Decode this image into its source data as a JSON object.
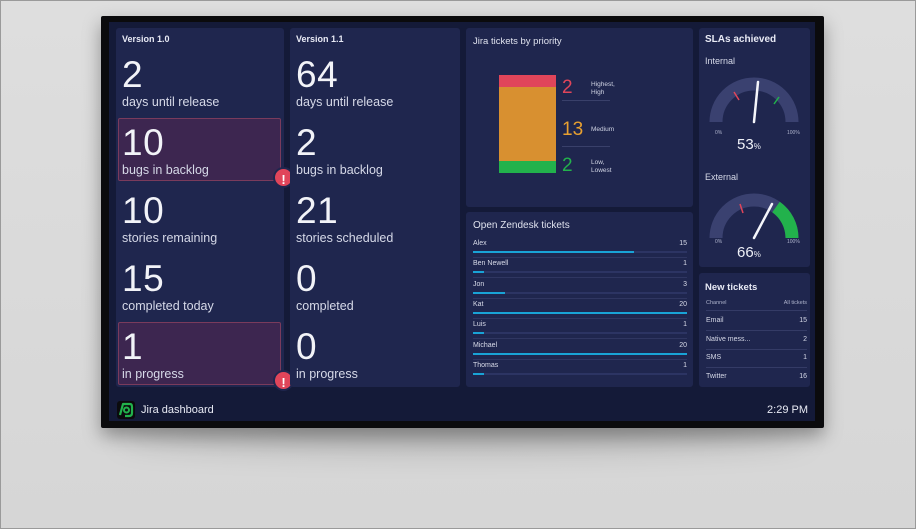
{
  "footer": {
    "title": "Jira dashboard",
    "time": "2:29 PM"
  },
  "version1": {
    "title": "Version 1.0",
    "metrics": [
      {
        "value": "2",
        "label": "days until release",
        "alert": false
      },
      {
        "value": "10",
        "label": "bugs in backlog",
        "alert": true
      },
      {
        "value": "10",
        "label": "stories remaining",
        "alert": false
      },
      {
        "value": "15",
        "label": "completed today",
        "alert": false
      },
      {
        "value": "1",
        "label": "in progress",
        "alert": true
      }
    ]
  },
  "version2": {
    "title": "Version 1.1",
    "metrics": [
      {
        "value": "64",
        "label": "days until release"
      },
      {
        "value": "2",
        "label": "bugs in backlog"
      },
      {
        "value": "21",
        "label": "stories scheduled"
      },
      {
        "value": "0",
        "label": "completed"
      },
      {
        "value": "0",
        "label": "in progress"
      }
    ]
  },
  "alert_glyph": "!",
  "priority": {
    "title": "Jira tickets by priority",
    "items": [
      {
        "count": "2",
        "label_line1": "Highest,",
        "label_line2": "High",
        "color": "#e0455a"
      },
      {
        "count": "13",
        "label_line1": "Medium",
        "label_line2": "",
        "color": "#e8a030"
      },
      {
        "count": "2",
        "label_line1": "Low,",
        "label_line2": "Lowest",
        "color": "#22b24c"
      }
    ]
  },
  "zendesk": {
    "title": "Open Zendesk tickets",
    "max": 20,
    "rows": [
      {
        "name": "Alex",
        "value": 15
      },
      {
        "name": "Ben Newell",
        "value": 1
      },
      {
        "name": "Jon",
        "value": 3
      },
      {
        "name": "Kat",
        "value": 20
      },
      {
        "name": "Luis",
        "value": 1
      },
      {
        "name": "Michael",
        "value": 20
      },
      {
        "name": "Thomas",
        "value": 1
      }
    ]
  },
  "sla": {
    "title": "SLAs achieved",
    "internal": {
      "label": "Internal",
      "value": "53",
      "unit": "%",
      "min": "0%",
      "max": "100%"
    },
    "external": {
      "label": "External",
      "value": "66",
      "unit": "%",
      "min": "0%",
      "max": "100%"
    }
  },
  "new_tickets": {
    "title": "New tickets",
    "col1": "Channel",
    "col2": "All tickets",
    "rows": [
      {
        "channel": "Email",
        "count": "15"
      },
      {
        "channel": "Native mess...",
        "count": "2"
      },
      {
        "channel": "SMS",
        "count": "1"
      },
      {
        "channel": "Twitter",
        "count": "16"
      }
    ]
  },
  "colors": {
    "accent": "#19a3d6",
    "alert": "#e0455a",
    "background": "#141a38",
    "panel": "#1f264e",
    "gauge_green": "#22b24c",
    "gauge_red": "#e0455a"
  }
}
